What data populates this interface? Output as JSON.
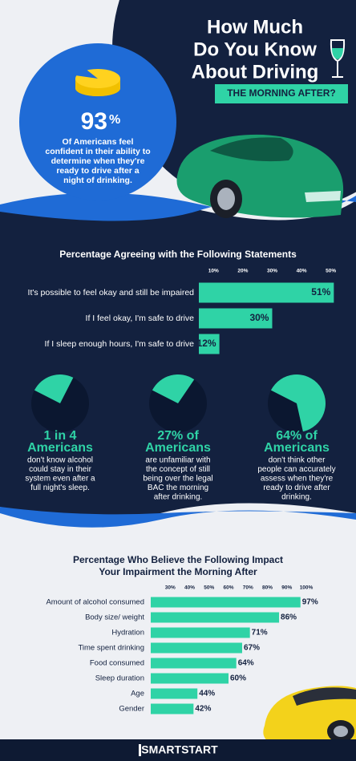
{
  "header": {
    "title_lines": [
      "How Much",
      "Do You Know",
      "About Driving"
    ],
    "banner": "THE MORNING AFTER?"
  },
  "hero_stat": {
    "value": 93,
    "label": "93",
    "unit": "%",
    "text_lines": [
      "Of Americans feel",
      "confident in their ability to",
      "determine when they're",
      "ready to drive after a",
      "night of drinking."
    ]
  },
  "chart_data": [
    {
      "type": "bar",
      "title": [
        "Percentage Agreeing with the Following Statements"
      ],
      "categories": [
        "It's possible to feel okay and still be impaired",
        "If I feel okay, I'm safe to drive",
        "If I sleep enough hours, I'm safe to drive"
      ],
      "values": [
        51,
        30,
        12
      ],
      "value_labels": [
        "51%",
        "30%",
        "12%"
      ],
      "color": "#2fd3a6",
      "xlim": [
        5,
        52
      ],
      "xticks": [
        {
          "value": 10,
          "label": "10%"
        },
        {
          "value": 20,
          "label": "20%"
        },
        {
          "value": 30,
          "label": "30%"
        },
        {
          "value": 40,
          "label": "40%"
        },
        {
          "value": 50,
          "label": "50%"
        }
      ]
    },
    {
      "type": "bar",
      "title": [
        "Percentage Who Believe the Following Impact",
        "Your Impairment the Morning After"
      ],
      "categories": [
        "Amount of alcohol consumed",
        "Body size/ weight",
        "Hydration",
        "Time spent drinking",
        "Food consumed",
        "Sleep duration",
        "Age",
        "Gender"
      ],
      "values": [
        97,
        86,
        71,
        67,
        64,
        60,
        44,
        42
      ],
      "value_labels": [
        "97%",
        "86%",
        "71%",
        "67%",
        "64%",
        "60%",
        "44%",
        "42%"
      ],
      "color": "#2fd3a6",
      "xlim": [
        20,
        100
      ],
      "xticks": [
        {
          "value": 30,
          "label": "30%"
        },
        {
          "value": 40,
          "label": "40%"
        },
        {
          "value": 50,
          "label": "50%"
        },
        {
          "value": 60,
          "label": "60%"
        },
        {
          "value": 70,
          "label": "70%"
        },
        {
          "value": 80,
          "label": "80%"
        },
        {
          "value": 90,
          "label": "90%"
        },
        {
          "value": 100,
          "label": "100%"
        }
      ]
    }
  ],
  "stats": [
    {
      "value": 25,
      "headline": "1 in 4",
      "subhead": "Americans",
      "text_lines": [
        "don't know alcohol",
        "could stay in their",
        "system even after a",
        "full night's sleep."
      ]
    },
    {
      "value": 27,
      "headline": "27% of",
      "subhead": "Americans",
      "text_lines": [
        "are unfamiliar with",
        "the concept of still",
        "being over the legal",
        "BAC the morning",
        "after drinking."
      ]
    },
    {
      "value": 64,
      "headline": "64% of",
      "subhead": "Americans",
      "text_lines": [
        "don't think other",
        "people can accurately",
        "assess when they're",
        "ready to drive after",
        "drinking."
      ]
    }
  ],
  "footer": {
    "brand": "SMARTSTART"
  }
}
